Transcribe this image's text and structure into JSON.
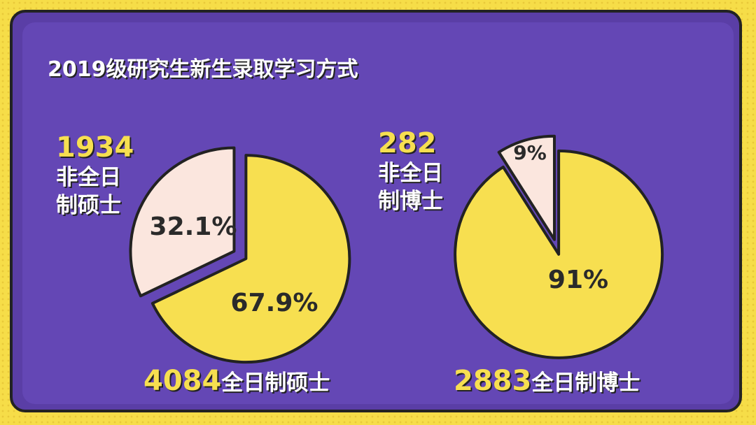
{
  "title": "2019级研究生新生录取学习方式",
  "chart_data": [
    {
      "type": "pie",
      "categories": [
        "全日制硕士",
        "非全日制硕士"
      ],
      "counts": [
        4084,
        1934
      ],
      "values": [
        67.9,
        32.1
      ],
      "value_labels": [
        "67.9%",
        "32.1%"
      ],
      "colors": [
        "#f7df50",
        "#fbe6de"
      ]
    },
    {
      "type": "pie",
      "categories": [
        "全日制博士",
        "非全日制博士"
      ],
      "counts": [
        2883,
        282
      ],
      "values": [
        91,
        9
      ],
      "value_labels": [
        "91%",
        "9%"
      ],
      "colors": [
        "#f7df50",
        "#fbe6de"
      ]
    }
  ]
}
